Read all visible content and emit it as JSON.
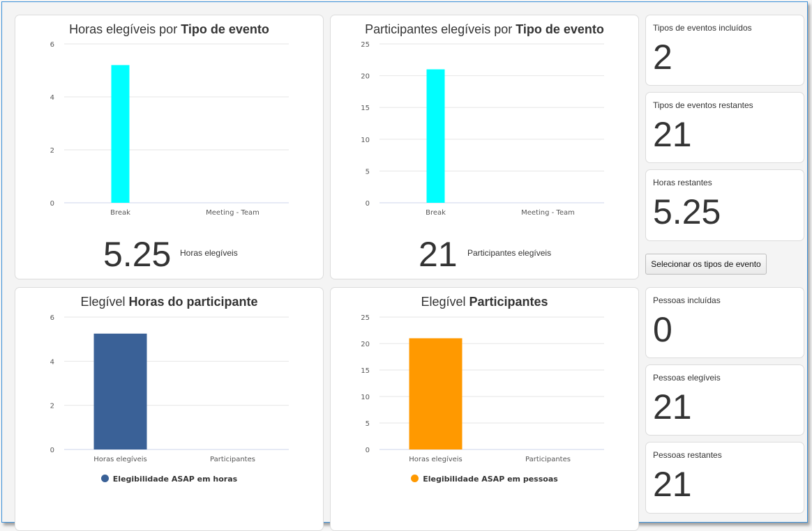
{
  "charts": {
    "hours_by_type": {
      "title_prefix": "Horas elegíveis por ",
      "title_bold": "Tipo de evento",
      "big_value": "5.25",
      "big_label": "Horas elegíveis",
      "color": "#00ffff"
    },
    "participants_by_type": {
      "title_prefix": "Participantes elegíveis por ",
      "title_bold": "Tipo de evento",
      "big_value": "21",
      "big_label": "Participantes elegíveis",
      "color": "#00ffff"
    },
    "participant_hours": {
      "title_prefix": "Elegível ",
      "title_bold": "Horas do participante",
      "legend": "Elegibilidade ASAP em horas",
      "color": "#3a6197"
    },
    "participants": {
      "title_prefix": "Elegível ",
      "title_bold": "Participantes",
      "legend": "Elegibilidade ASAP em pessoas",
      "color": "#ff9900"
    }
  },
  "stats": [
    {
      "label": "Tipos de eventos incluídos",
      "value": "2"
    },
    {
      "label": "Tipos de eventos restantes",
      "value": "21"
    },
    {
      "label": "Horas restantes",
      "value": "5.25"
    },
    {
      "label": "Pessoas incluídas",
      "value": "0"
    },
    {
      "label": "Pessoas elegíveis",
      "value": "21"
    },
    {
      "label": "Pessoas restantes",
      "value": "21"
    }
  ],
  "select_button_label": "Selecionar os tipos de evento",
  "chart_data": [
    {
      "type": "bar",
      "title": "Horas elegíveis por Tipo de evento",
      "categories": [
        "Break",
        "Meeting - Team"
      ],
      "values": [
        5.2,
        0
      ],
      "yticks": [
        0,
        2,
        4,
        6
      ],
      "ylim": [
        0,
        6
      ]
    },
    {
      "type": "bar",
      "title": "Participantes elegíveis por Tipo de evento",
      "categories": [
        "Break",
        "Meeting - Team"
      ],
      "values": [
        21,
        0
      ],
      "yticks": [
        0,
        5,
        10,
        15,
        20,
        25
      ],
      "ylim": [
        0,
        25
      ]
    },
    {
      "type": "bar",
      "title": "Elegível Horas do participante",
      "categories": [
        "Horas elegíveis",
        "Participantes"
      ],
      "values": [
        5.25,
        0
      ],
      "yticks": [
        0,
        2,
        4,
        6
      ],
      "ylim": [
        0,
        6
      ],
      "series": [
        {
          "name": "Elegibilidade ASAP em horas",
          "values": [
            5.25,
            0
          ]
        }
      ]
    },
    {
      "type": "bar",
      "title": "Elegível Participantes",
      "categories": [
        "Horas elegíveis",
        "Participantes"
      ],
      "values": [
        21,
        0
      ],
      "yticks": [
        0,
        5,
        10,
        15,
        20,
        25
      ],
      "ylim": [
        0,
        25
      ],
      "series": [
        {
          "name": "Elegibilidade ASAP em pessoas",
          "values": [
            21,
            0
          ]
        }
      ]
    }
  ]
}
